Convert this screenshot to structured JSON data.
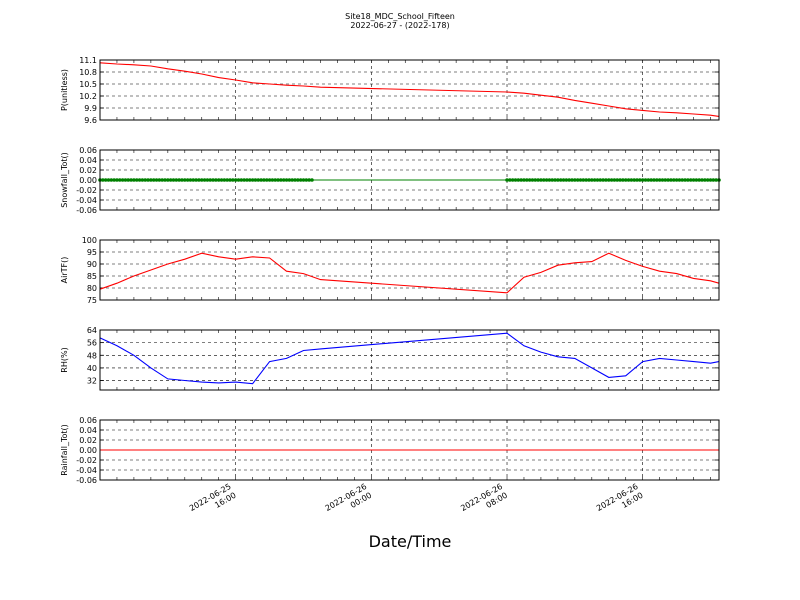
{
  "figure": {
    "title": "Site18_MDC_School_Fifteen",
    "subtitle": "2022-06-27 - (2022-178)",
    "xlabel": "Date/Time",
    "x_ticks": [
      {
        "x": "2022-06-25T16:00",
        "line1": "2022-06-25",
        "line2": "16:00"
      },
      {
        "x": "2022-06-26T00:00",
        "line1": "2022-06-26",
        "line2": "00:00"
      },
      {
        "x": "2022-06-26T08:00",
        "line1": "2022-06-26",
        "line2": "08:00"
      },
      {
        "x": "2022-06-26T16:00",
        "line1": "2022-06-26",
        "line2": "16:00"
      }
    ]
  },
  "chart_data": [
    {
      "type": "line",
      "ylabel": "P(unitless)",
      "ylim": [
        9.6,
        11.1
      ],
      "yticks": [
        "9.6",
        "9.9",
        "10.2",
        "10.5",
        "10.8",
        "11.1"
      ],
      "xlim": [
        "2022-06-25T08:00",
        "2022-06-26T20:30"
      ],
      "grid": true,
      "color": "#ff0000",
      "marker": false,
      "series": [
        {
          "x": [
            "2022-06-25T08:00",
            "2022-06-25T09:00",
            "2022-06-25T10:00",
            "2022-06-25T11:00",
            "2022-06-25T12:00",
            "2022-06-25T13:00",
            "2022-06-25T14:00",
            "2022-06-25T15:00",
            "2022-06-25T16:00",
            "2022-06-25T17:00",
            "2022-06-25T18:00",
            "2022-06-25T19:00",
            "2022-06-25T20:00",
            "2022-06-25T21:00",
            "2022-06-26T08:00",
            "2022-06-26T09:00",
            "2022-06-26T10:00",
            "2022-06-26T11:00",
            "2022-06-26T12:00",
            "2022-06-26T13:00",
            "2022-06-26T14:00",
            "2022-06-26T15:00",
            "2022-06-26T16:00",
            "2022-06-26T17:00",
            "2022-06-26T18:00",
            "2022-06-26T19:00",
            "2022-06-26T20:00",
            "2022-06-26T20:30"
          ],
          "values": [
            11.03,
            11.0,
            10.98,
            10.95,
            10.88,
            10.82,
            10.75,
            10.66,
            10.6,
            10.53,
            10.5,
            10.47,
            10.45,
            10.42,
            10.3,
            10.27,
            10.22,
            10.17,
            10.09,
            10.02,
            9.95,
            9.88,
            9.84,
            9.8,
            9.78,
            9.75,
            9.72,
            9.69
          ]
        }
      ]
    },
    {
      "type": "line",
      "ylabel": "Snowfall_Tot()",
      "ylim": [
        -0.06,
        0.06
      ],
      "yticks": [
        "-0.06",
        "-0.04",
        "-0.02",
        "0.00",
        "0.02",
        "0.04",
        "0.06"
      ],
      "xlim": [
        "2022-06-25T08:00",
        "2022-06-26T20:30"
      ],
      "grid": true,
      "color": "#008000",
      "marker": true,
      "series": [
        {
          "x": [
            "2022-06-25T08:00",
            "2022-06-25T20:30",
            "2022-06-26T08:00",
            "2022-06-26T20:30"
          ],
          "values": [
            0,
            0,
            0,
            0
          ]
        }
      ]
    },
    {
      "type": "line",
      "ylabel": "AirTF()",
      "ylim": [
        75,
        100
      ],
      "yticks": [
        "75",
        "80",
        "85",
        "90",
        "95",
        "100"
      ],
      "xlim": [
        "2022-06-25T08:00",
        "2022-06-26T20:30"
      ],
      "grid": true,
      "color": "#ff0000",
      "marker": false,
      "series": [
        {
          "x": [
            "2022-06-25T08:00",
            "2022-06-25T09:00",
            "2022-06-25T10:00",
            "2022-06-25T11:00",
            "2022-06-25T12:00",
            "2022-06-25T13:00",
            "2022-06-25T14:00",
            "2022-06-25T15:00",
            "2022-06-25T16:00",
            "2022-06-25T17:00",
            "2022-06-25T18:00",
            "2022-06-25T19:00",
            "2022-06-25T20:00",
            "2022-06-25T21:00",
            "2022-06-26T08:00",
            "2022-06-26T09:00",
            "2022-06-26T10:00",
            "2022-06-26T11:00",
            "2022-06-26T12:00",
            "2022-06-26T13:00",
            "2022-06-26T14:00",
            "2022-06-26T15:00",
            "2022-06-26T16:00",
            "2022-06-26T17:00",
            "2022-06-26T18:00",
            "2022-06-26T19:00",
            "2022-06-26T20:00",
            "2022-06-26T20:30"
          ],
          "values": [
            79.5,
            82,
            85,
            87.5,
            90,
            92,
            94.5,
            93,
            92,
            93,
            92.5,
            87,
            86,
            83.5,
            78,
            84.5,
            86.5,
            89.5,
            90.5,
            91,
            94.5,
            91.5,
            89,
            87,
            86,
            84,
            83,
            82
          ]
        }
      ]
    },
    {
      "type": "line",
      "ylabel": "RH(%)",
      "ylim": [
        26,
        64
      ],
      "yticks": [
        "32",
        "40",
        "48",
        "56",
        "64"
      ],
      "xlim": [
        "2022-06-25T08:00",
        "2022-06-26T20:30"
      ],
      "grid": true,
      "color": "#0000ff",
      "marker": false,
      "series": [
        {
          "x": [
            "2022-06-25T08:00",
            "2022-06-25T09:00",
            "2022-06-25T10:00",
            "2022-06-25T11:00",
            "2022-06-25T12:00",
            "2022-06-25T13:00",
            "2022-06-25T14:00",
            "2022-06-25T15:00",
            "2022-06-25T16:00",
            "2022-06-25T17:00",
            "2022-06-25T18:00",
            "2022-06-25T19:00",
            "2022-06-25T20:00",
            "2022-06-25T21:00",
            "2022-06-26T08:00",
            "2022-06-26T09:00",
            "2022-06-26T10:00",
            "2022-06-26T11:00",
            "2022-06-26T12:00",
            "2022-06-26T13:00",
            "2022-06-26T14:00",
            "2022-06-26T15:00",
            "2022-06-26T16:00",
            "2022-06-26T17:00",
            "2022-06-26T18:00",
            "2022-06-26T19:00",
            "2022-06-26T20:00",
            "2022-06-26T20:30"
          ],
          "values": [
            59,
            54,
            48,
            40,
            33,
            32,
            31,
            30.5,
            31,
            30,
            44,
            46,
            51,
            52,
            62,
            54,
            50,
            47,
            46,
            40,
            34,
            35,
            44,
            46,
            45,
            44,
            43,
            44
          ]
        }
      ]
    },
    {
      "type": "line",
      "ylabel": "Rainfall_Tot()",
      "ylim": [
        -0.06,
        0.06
      ],
      "yticks": [
        "-0.06",
        "-0.04",
        "-0.02",
        "0.00",
        "0.02",
        "0.04",
        "0.06"
      ],
      "xlim": [
        "2022-06-25T08:00",
        "2022-06-26T20:30"
      ],
      "grid": true,
      "color": "#ff0000",
      "marker": false,
      "series": [
        {
          "x": [
            "2022-06-25T08:00",
            "2022-06-26T20:30"
          ],
          "values": [
            0,
            0
          ]
        }
      ]
    }
  ]
}
